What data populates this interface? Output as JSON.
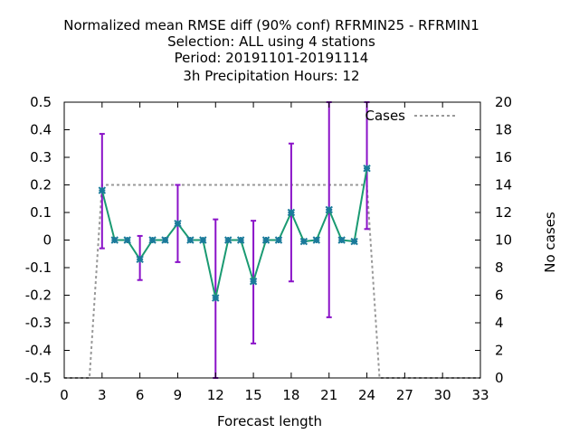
{
  "chart_data": {
    "type": "line",
    "title_lines": [
      "Normalized mean RMSE diff (90% conf) RFRMIN25 - RFRMIN1",
      "Selection: ALL using     4 stations",
      "Period: 20191101-20191114",
      "3h Precipitation   Hours:  12"
    ],
    "xlabel": "Forecast length",
    "ylabel": "",
    "y2label": "No cases",
    "xlim": [
      0,
      33
    ],
    "ylim": [
      -0.5,
      0.5
    ],
    "y2lim": [
      0,
      20
    ],
    "xticks": [
      0,
      3,
      6,
      9,
      12,
      15,
      18,
      21,
      24,
      27,
      30,
      33
    ],
    "yticks": [
      -0.5,
      -0.4,
      -0.3,
      -0.2,
      -0.1,
      0,
      0.1,
      0.2,
      0.3,
      0.4,
      0.5
    ],
    "y2ticks": [
      0,
      2,
      4,
      6,
      8,
      10,
      12,
      14,
      16,
      18,
      20
    ],
    "ytick_labels": [
      "-0.5",
      "-0.4",
      "-0.3",
      "-0.2",
      "-0.1",
      "0",
      "0.1",
      "0.2",
      "0.3",
      "0.4",
      "0.5"
    ],
    "legend_position": "top-right",
    "grid": false,
    "colors": {
      "line": "#1a9a72",
      "marker": "#1a7a9a",
      "errorbar": "#8a12c8",
      "cases": "#999999"
    },
    "series": [
      {
        "x": [
          3,
          4,
          5,
          6,
          7,
          8,
          9,
          10,
          11,
          12,
          13,
          14,
          15,
          16,
          17,
          18,
          19,
          20,
          21,
          22,
          23,
          24
        ],
        "y": [
          0.18,
          0.0,
          0.0,
          -0.07,
          0.0,
          0.0,
          0.06,
          0.0,
          0.0,
          -0.21,
          0.0,
          0.0,
          -0.15,
          0.0,
          0.0,
          0.1,
          -0.005,
          0.0,
          0.11,
          0.0,
          -0.005,
          0.26
        ]
      }
    ],
    "errorbars": [
      {
        "x": 3,
        "low": -0.03,
        "high": 0.385
      },
      {
        "x": 6,
        "low": -0.145,
        "high": 0.015
      },
      {
        "x": 9,
        "low": -0.08,
        "high": 0.2
      },
      {
        "x": 12,
        "low": -0.5,
        "high": 0.075
      },
      {
        "x": 15,
        "low": -0.375,
        "high": 0.07
      },
      {
        "x": 18,
        "low": -0.15,
        "high": 0.35
      },
      {
        "x": 21,
        "low": -0.28,
        "high": 0.5
      },
      {
        "x": 24,
        "low": 0.04,
        "high": 0.5
      }
    ],
    "cases_series": {
      "name": "Cases",
      "x": [
        0,
        2,
        3,
        24,
        25,
        33
      ],
      "y": [
        0,
        0,
        14,
        14,
        0,
        0
      ]
    }
  }
}
